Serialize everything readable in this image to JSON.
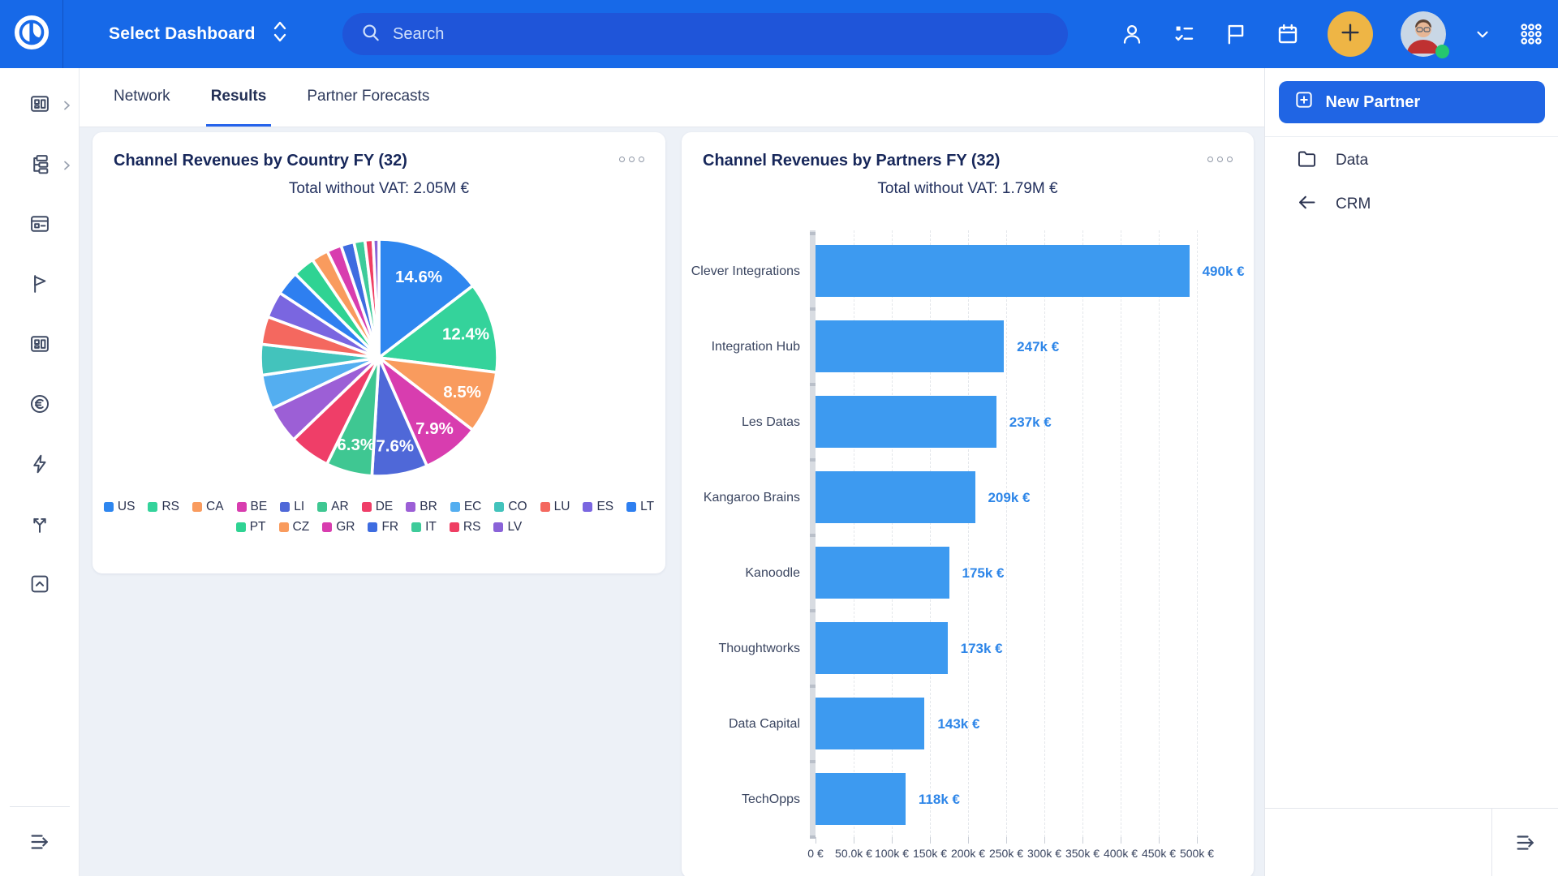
{
  "colors": {
    "topbar_bg": "#1769e8",
    "search_bg": "#1f55d9",
    "accent_blue": "#2563eb",
    "bar_fill": "#3d9af0",
    "bar_value_label": "#2e86e8",
    "plus_button": "#eeb545",
    "status_online": "#25c76f",
    "title_navy": "#17275a"
  },
  "icons": [
    "logo-icon",
    "chevron-expand-icon",
    "search-icon",
    "person-icon",
    "tasks-icon",
    "flag-banner-icon",
    "calendar-icon",
    "plus-icon",
    "avatar",
    "chevron-down-icon",
    "grid-dots-icon",
    "dashboard-icon",
    "hierarchy-icon",
    "window-icon",
    "pennant-icon",
    "panels-icon",
    "euro-icon",
    "lightning-icon",
    "branch-icon",
    "box-arrow-up-icon",
    "collapse-sidebar-icon",
    "card-menu-icon",
    "plus-square-icon",
    "folder-icon",
    "arrow-left-icon"
  ],
  "topbar": {
    "dashboard_selector": "Select Dashboard",
    "search_placeholder": "Search"
  },
  "tabs": {
    "items": [
      "Network",
      "Results",
      "Partner Forecasts"
    ],
    "active": "Results"
  },
  "right_panel": {
    "new_partner_label": "New Partner",
    "items": [
      {
        "label": "Data",
        "icon": "folder-icon"
      },
      {
        "label": "CRM",
        "icon": "arrow-left-icon"
      }
    ]
  },
  "chart_data": [
    {
      "type": "pie",
      "title": "Channel Revenues by Country FY (32)",
      "subtitle": "Total without VAT: 2.05M €",
      "legend_position": "bottom",
      "legend_rows": [
        13,
        7
      ],
      "slices": [
        {
          "label": "US",
          "pct": 14.6,
          "color": "#2e86ef",
          "pct_label": "14.6%"
        },
        {
          "label": "RS",
          "pct": 12.4,
          "color": "#34d39b",
          "pct_label": "12.4%"
        },
        {
          "label": "CA",
          "pct": 8.5,
          "color": "#f99b5e",
          "pct_label": "8.5%"
        },
        {
          "label": "BE",
          "pct": 7.9,
          "color": "#d83daf",
          "pct_label": "7.9%"
        },
        {
          "label": "LI",
          "pct": 7.6,
          "color": "#4f68d8",
          "pct_label": "7.6%"
        },
        {
          "label": "AR",
          "pct": 6.3,
          "color": "#3fc792",
          "pct_label": "6.3%"
        },
        {
          "label": "DE",
          "pct": 5.6,
          "color": "#ef3e68"
        },
        {
          "label": "BR",
          "pct": 5.1,
          "color": "#9c5fd6"
        },
        {
          "label": "EC",
          "pct": 4.7,
          "color": "#54aef0"
        },
        {
          "label": "CO",
          "pct": 4.2,
          "color": "#43c3bc"
        },
        {
          "label": "LU",
          "pct": 3.8,
          "color": "#f4685f"
        },
        {
          "label": "ES",
          "pct": 3.6,
          "color": "#7a66e0"
        },
        {
          "label": "LT",
          "pct": 3.3,
          "color": "#2e7ff0"
        },
        {
          "label": "PT",
          "pct": 3.0,
          "color": "#2fd393"
        },
        {
          "label": "CZ",
          "pct": 2.3,
          "color": "#f99b5e"
        },
        {
          "label": "GR",
          "pct": 2.0,
          "color": "#d83daf"
        },
        {
          "label": "FR",
          "pct": 1.8,
          "color": "#3e6ce0"
        },
        {
          "label": "IT",
          "pct": 1.5,
          "color": "#3ecb9a"
        },
        {
          "label": "RS",
          "pct": 1.1,
          "color": "#ef3e63"
        },
        {
          "label": "LV",
          "pct": 0.8,
          "color": "#8a63d8"
        }
      ]
    },
    {
      "type": "bar",
      "orientation": "horizontal",
      "title": "Channel Revenues by Partners FY (32)",
      "subtitle": "Total without VAT: 1.79M €",
      "categories": [
        "Clever Integrations",
        "Integration Hub",
        "Les Datas",
        "Kangaroo Brains",
        "Kanoodle",
        "Thoughtworks",
        "Data Capital",
        "TechOpps"
      ],
      "values": [
        490000,
        247000,
        237000,
        209000,
        175000,
        173000,
        143000,
        118000
      ],
      "value_labels": [
        "490k €",
        "247k €",
        "237k €",
        "209k €",
        "175k €",
        "173k €",
        "143k €",
        "118k €"
      ],
      "x_ticks": [
        "0 €",
        "50.0k €",
        "100k €",
        "150k €",
        "200k €",
        "250k €",
        "300k €",
        "350k €",
        "400k €",
        "450k €",
        "500k €"
      ],
      "xmax": 500000,
      "grid": "dashed-vertical"
    }
  ]
}
